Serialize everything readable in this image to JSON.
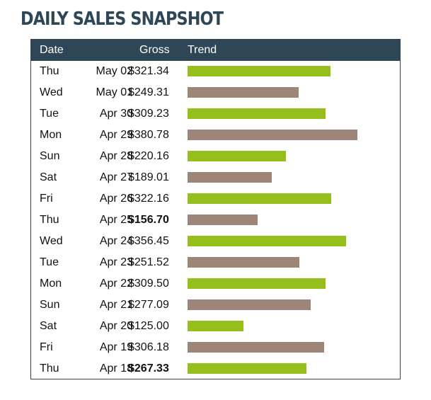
{
  "title": "DAILY SALES SNAPSHOT",
  "header": {
    "date": "Date",
    "gross": "Gross",
    "trend": "Trend"
  },
  "colors": {
    "header_bg": "#2f4656",
    "bar_green": "#95bd1c",
    "bar_taupe": "#9d8678"
  },
  "chart_data": {
    "type": "bar",
    "orientation": "horizontal",
    "title": "DAILY SALES SNAPSHOT",
    "xlim": [
      0,
      410
    ],
    "rows": [
      {
        "day": "Thu",
        "date": "May 02",
        "gross_label": "$321.34",
        "value": 321.34,
        "bold": false,
        "color": "#95bd1c"
      },
      {
        "day": "Wed",
        "date": "May 01",
        "gross_label": "$249.31",
        "value": 249.31,
        "bold": false,
        "color": "#9d8678"
      },
      {
        "day": "Tue",
        "date": "Apr 30",
        "gross_label": "$309.23",
        "value": 309.23,
        "bold": false,
        "color": "#95bd1c"
      },
      {
        "day": "Mon",
        "date": "Apr 29",
        "gross_label": "$380.78",
        "value": 380.78,
        "bold": false,
        "color": "#9d8678"
      },
      {
        "day": "Sun",
        "date": "Apr 28",
        "gross_label": "$220.16",
        "value": 220.16,
        "bold": false,
        "color": "#95bd1c"
      },
      {
        "day": "Sat",
        "date": "Apr 27",
        "gross_label": "$189.01",
        "value": 189.01,
        "bold": false,
        "color": "#9d8678"
      },
      {
        "day": "Fri",
        "date": "Apr 26",
        "gross_label": "$322.16",
        "value": 322.16,
        "bold": false,
        "color": "#95bd1c"
      },
      {
        "day": "Thu",
        "date": "Apr 25",
        "gross_label": "$156.70",
        "value": 156.7,
        "bold": true,
        "color": "#9d8678"
      },
      {
        "day": "Wed",
        "date": "Apr 24",
        "gross_label": "$356.45",
        "value": 356.45,
        "bold": false,
        "color": "#95bd1c"
      },
      {
        "day": "Tue",
        "date": "Apr 23",
        "gross_label": "$251.52",
        "value": 251.52,
        "bold": false,
        "color": "#9d8678"
      },
      {
        "day": "Mon",
        "date": "Apr 22",
        "gross_label": "$309.50",
        "value": 309.5,
        "bold": false,
        "color": "#95bd1c"
      },
      {
        "day": "Sun",
        "date": "Apr 21",
        "gross_label": "$277.09",
        "value": 277.09,
        "bold": false,
        "color": "#9d8678"
      },
      {
        "day": "Sat",
        "date": "Apr 20",
        "gross_label": "$125.00",
        "value": 125.0,
        "bold": false,
        "color": "#95bd1c"
      },
      {
        "day": "Fri",
        "date": "Apr 19",
        "gross_label": "$306.18",
        "value": 306.18,
        "bold": false,
        "color": "#9d8678"
      },
      {
        "day": "Thu",
        "date": "Apr 18",
        "gross_label": "$267.33",
        "value": 267.33,
        "bold": true,
        "color": "#95bd1c"
      }
    ]
  }
}
